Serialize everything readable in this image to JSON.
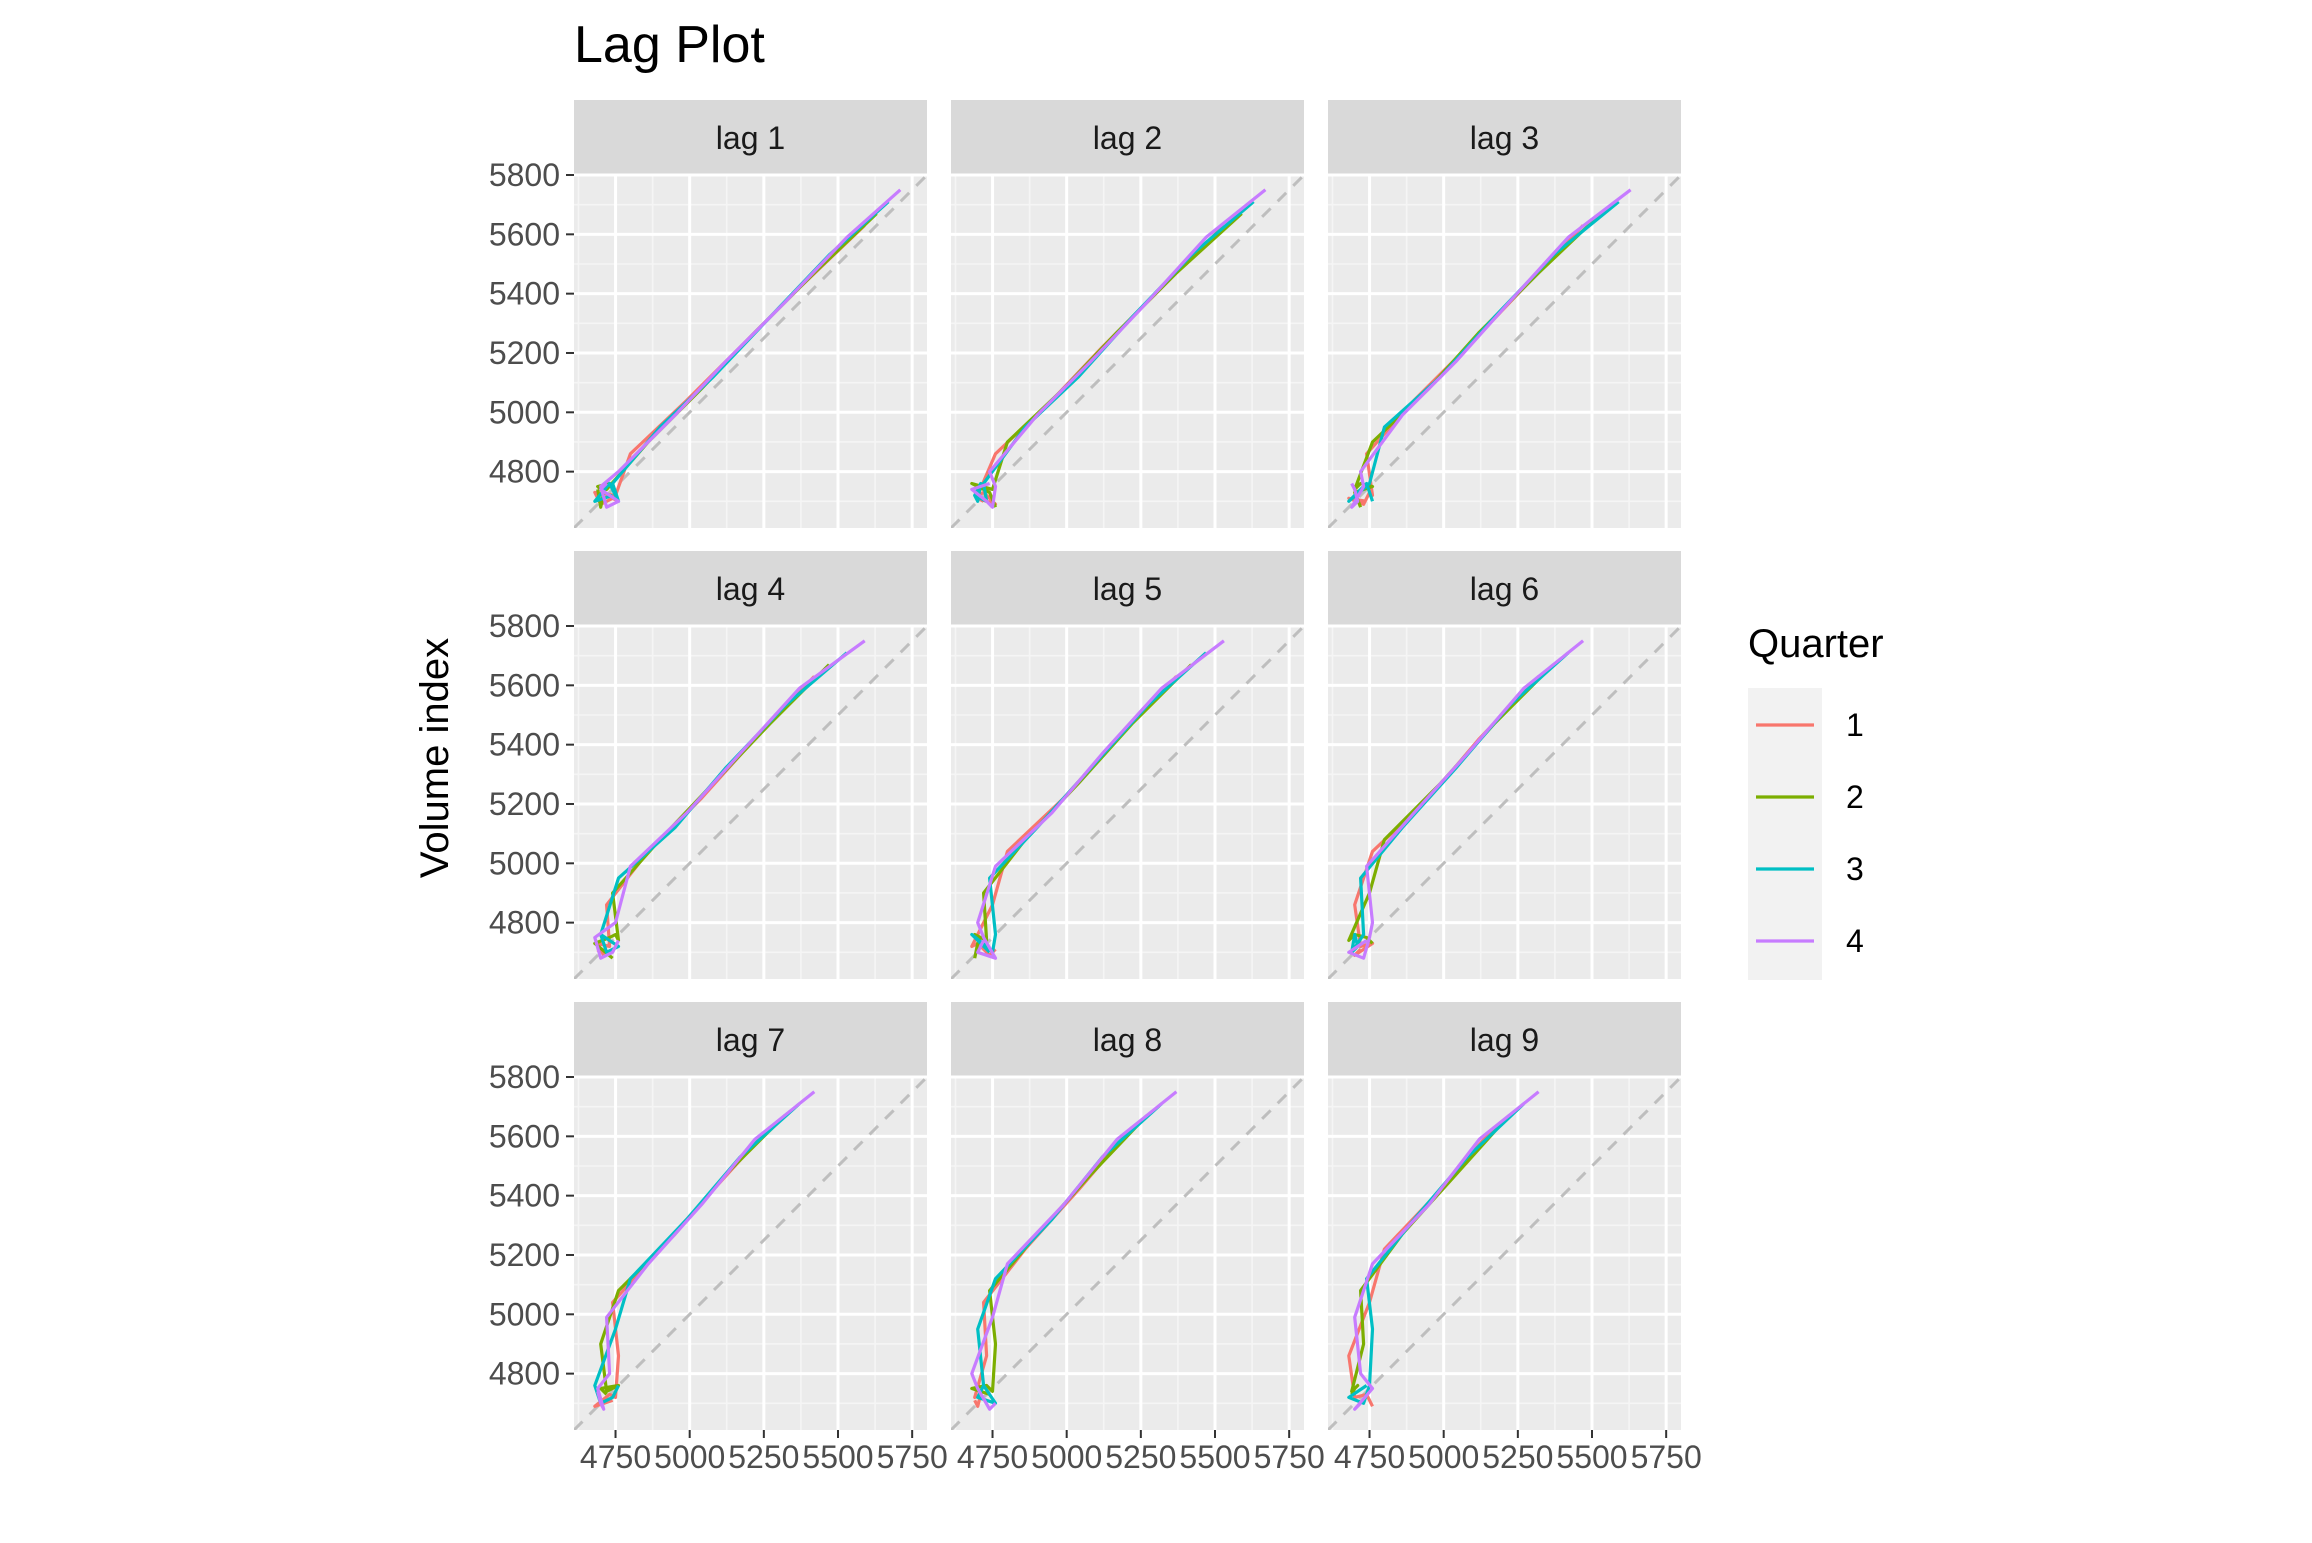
{
  "chart_data": {
    "type": "line",
    "title": "Lag Plot",
    "xlabel": "",
    "ylabel": "Volume index",
    "xlim": [
      4610,
      5800
    ],
    "ylim": [
      4610,
      5800
    ],
    "x_ticks": [
      4750,
      5000,
      5250,
      5500,
      5750
    ],
    "x_tick_labels": [
      "4750",
      "5000",
      "5250",
      "5500",
      "5750"
    ],
    "y_ticks": [
      4800,
      5000,
      5200,
      5400,
      5600,
      5800
    ],
    "y_tick_labels": [
      "4800",
      "5000",
      "5200",
      "5400",
      "5600",
      "5800"
    ],
    "grid": true,
    "reference_line": "y = x",
    "legend": {
      "title": "Quarter",
      "placement": "right",
      "entries": [
        {
          "label": "1",
          "color": "#F8766D"
        },
        {
          "label": "2",
          "color": "#7CAE00"
        },
        {
          "label": "3",
          "color": "#00BFC4"
        },
        {
          "label": "4",
          "color": "#C77CFF"
        }
      ]
    },
    "series_y": [
      4690,
      4740,
      4720,
      4760,
      4700,
      4680,
      4700,
      4740,
      4710,
      4730,
      4760,
      4700,
      4690,
      4750,
      4720,
      4680,
      4730,
      4760,
      4700,
      4750,
      4720,
      4740,
      4760,
      4800,
      4860,
      4900,
      4950,
      4990,
      5040,
      5080,
      5120,
      5170,
      5220,
      5270,
      5320,
      5370,
      5420,
      5470,
      5530,
      5590,
      5630,
      5670,
      5710,
      5750
    ],
    "panels": [
      {
        "label": "lag 1",
        "lag": 1
      },
      {
        "label": "lag 2",
        "lag": 2
      },
      {
        "label": "lag 3",
        "lag": 3
      },
      {
        "label": "lag 4",
        "lag": 4
      },
      {
        "label": "lag 5",
        "lag": 5
      },
      {
        "label": "lag 6",
        "lag": 6
      },
      {
        "label": "lag 7",
        "lag": 7
      },
      {
        "label": "lag 8",
        "lag": 8
      },
      {
        "label": "lag 9",
        "lag": 9
      }
    ]
  }
}
